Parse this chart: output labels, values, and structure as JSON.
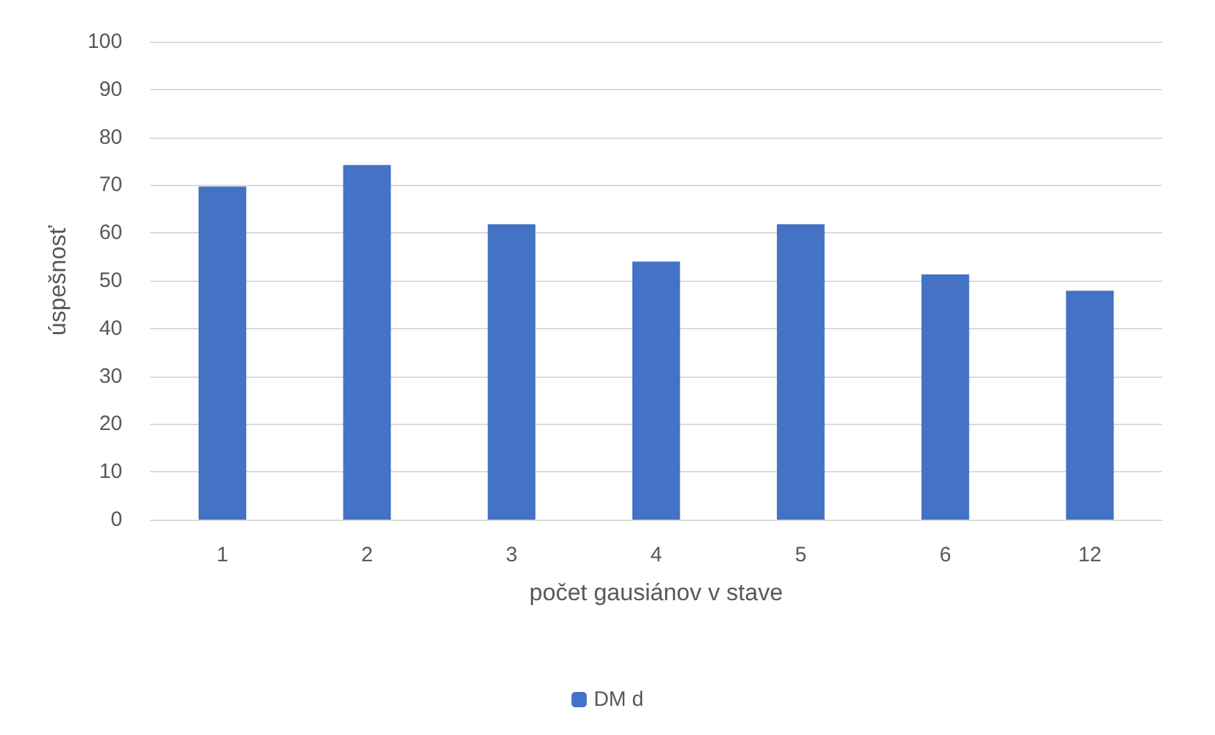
{
  "chart_data": {
    "type": "bar",
    "xlabel": "počet gausiánov v stave",
    "ylabel": "úspešnosť",
    "categories": [
      "1",
      "2",
      "3",
      "4",
      "5",
      "6",
      "12"
    ],
    "series": [
      {
        "name": "DM d",
        "color": "#4472c4",
        "values": [
          69.7,
          74.2,
          61.8,
          54,
          61.8,
          51.3,
          47.9
        ]
      }
    ],
    "ylim": [
      0,
      100
    ],
    "yticks": [
      0,
      10,
      20,
      30,
      40,
      50,
      60,
      70,
      80,
      90,
      100
    ],
    "grid": "y",
    "legend": "bottom"
  }
}
